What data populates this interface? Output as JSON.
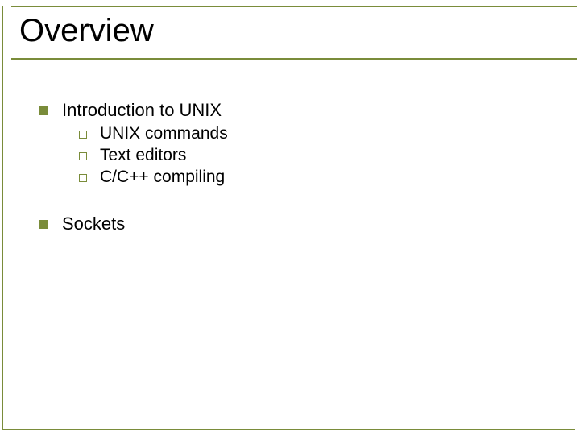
{
  "slide": {
    "title": "Overview",
    "accent_color": "#7a8c3a",
    "title_fontsize": 40,
    "body_fontsize": 22,
    "sub_fontsize": 21,
    "background_color": "#ffffff",
    "text_color": "#000000",
    "bullets": [
      {
        "text": "Introduction to UNIX",
        "children": [
          {
            "text": "UNIX commands"
          },
          {
            "text": "Text editors"
          },
          {
            "text": "C/C++ compiling"
          }
        ]
      },
      {
        "text": "Sockets",
        "children": []
      }
    ]
  }
}
